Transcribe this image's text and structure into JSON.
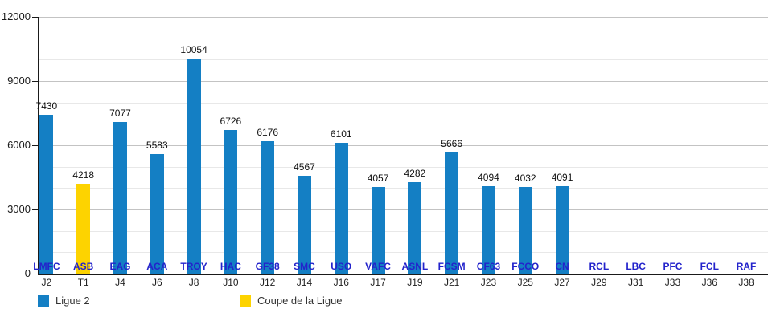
{
  "chart_data": {
    "type": "bar",
    "title": "",
    "xlabel": "",
    "ylabel": "",
    "categories": [
      "J2",
      "T1",
      "J4",
      "J6",
      "J8",
      "J10",
      "J12",
      "J14",
      "J16",
      "J17",
      "J19",
      "J21",
      "J23",
      "J25",
      "J27",
      "J29",
      "J31",
      "J33",
      "J36",
      "J38"
    ],
    "team_labels": [
      "LMFC",
      "ASB",
      "EAG",
      "ACA",
      "TROY",
      "HAC",
      "GF38",
      "SMC",
      "USO",
      "VAFC",
      "ASNL",
      "FCSM",
      "CF63",
      "FCCO",
      "CN",
      "RCL",
      "LBC",
      "PFC",
      "FCL",
      "RAF"
    ],
    "series": [
      {
        "name": "Ligue 2",
        "color": "#147fc4",
        "values": [
          7430,
          null,
          7077,
          5583,
          10054,
          6726,
          6176,
          4567,
          6101,
          4057,
          4282,
          5666,
          4094,
          4032,
          4091,
          null,
          null,
          null,
          null,
          null
        ]
      },
      {
        "name": "Coupe de la Ligue",
        "color": "#fdd300",
        "values": [
          null,
          4218,
          null,
          null,
          null,
          null,
          null,
          null,
          null,
          null,
          null,
          null,
          null,
          null,
          null,
          null,
          null,
          null,
          null,
          null
        ]
      }
    ],
    "ylim": [
      0,
      12000
    ],
    "y_major_ticks": [
      0,
      3000,
      6000,
      9000,
      12000
    ],
    "y_minor_step": 1000,
    "grid": "on",
    "legend_position": "bottom"
  },
  "legend": {
    "items": [
      {
        "label": "Ligue 2",
        "color": "#147fc4"
      },
      {
        "label": "Coupe de la Ligue",
        "color": "#fdd300"
      }
    ]
  }
}
